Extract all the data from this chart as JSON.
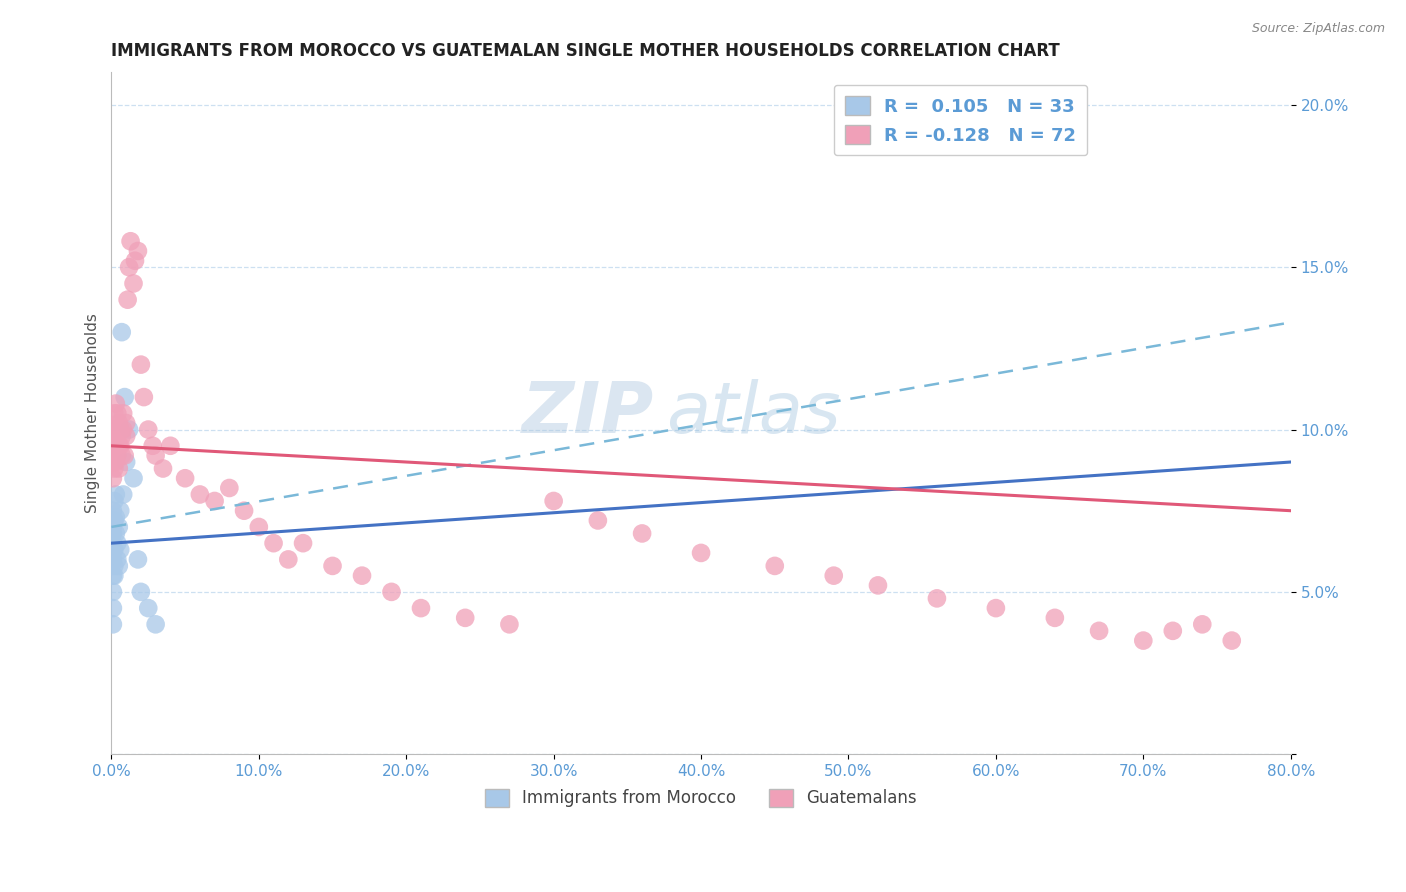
{
  "title": "IMMIGRANTS FROM MOROCCO VS GUATEMALAN SINGLE MOTHER HOUSEHOLDS CORRELATION CHART",
  "source": "Source: ZipAtlas.com",
  "ylabel": "Single Mother Households",
  "xlim": [
    0.0,
    0.8
  ],
  "ylim": [
    0.0,
    0.21
  ],
  "xticks": [
    0.0,
    0.1,
    0.2,
    0.3,
    0.4,
    0.5,
    0.6,
    0.7,
    0.8
  ],
  "yticks": [
    0.0,
    0.05,
    0.1,
    0.15,
    0.2
  ],
  "ytick_labels": [
    "",
    "5.0%",
    "10.0%",
    "15.0%",
    "20.0%"
  ],
  "xtick_labels": [
    "0.0%",
    "10.0%",
    "20.0%",
    "30.0%",
    "40.0%",
    "50.0%",
    "60.0%",
    "70.0%",
    "80.0%"
  ],
  "blue_scatter_color": "#a8c8e8",
  "pink_scatter_color": "#f0a0b8",
  "blue_line_color": "#4472c4",
  "pink_line_color": "#e05878",
  "dashed_line_color": "#7ab8d8",
  "tick_color": "#5b9bd5",
  "legend_R1": "R =  0.105",
  "legend_N1": "N = 33",
  "legend_R2": "R = -0.128",
  "legend_N2": "N = 72",
  "legend_label1": "Immigrants from Morocco",
  "legend_label2": "Guatemalans",
  "watermark_zip": "ZIP",
  "watermark_atlas": "atlas",
  "blue_line_x0": 0.0,
  "blue_line_x1": 0.8,
  "blue_line_y0": 0.065,
  "blue_line_y1": 0.09,
  "pink_line_x0": 0.0,
  "pink_line_x1": 0.8,
  "pink_line_y0": 0.095,
  "pink_line_y1": 0.075,
  "dashed_line_x0": 0.0,
  "dashed_line_x1": 0.8,
  "dashed_line_y0": 0.07,
  "dashed_line_y1": 0.133,
  "blue_x": [
    0.001,
    0.001,
    0.001,
    0.001,
    0.001,
    0.001,
    0.001,
    0.001,
    0.001,
    0.002,
    0.002,
    0.002,
    0.002,
    0.002,
    0.003,
    0.003,
    0.003,
    0.004,
    0.004,
    0.005,
    0.005,
    0.006,
    0.006,
    0.007,
    0.008,
    0.009,
    0.01,
    0.012,
    0.015,
    0.018,
    0.02,
    0.025,
    0.03
  ],
  "blue_y": [
    0.06,
    0.055,
    0.065,
    0.07,
    0.075,
    0.05,
    0.045,
    0.04,
    0.068,
    0.072,
    0.078,
    0.058,
    0.063,
    0.055,
    0.068,
    0.073,
    0.08,
    0.065,
    0.06,
    0.07,
    0.058,
    0.075,
    0.063,
    0.13,
    0.08,
    0.11,
    0.09,
    0.1,
    0.085,
    0.06,
    0.05,
    0.045,
    0.04
  ],
  "pink_x": [
    0.001,
    0.001,
    0.001,
    0.001,
    0.002,
    0.002,
    0.002,
    0.002,
    0.002,
    0.003,
    0.003,
    0.003,
    0.003,
    0.004,
    0.004,
    0.004,
    0.005,
    0.005,
    0.005,
    0.005,
    0.006,
    0.006,
    0.007,
    0.007,
    0.008,
    0.008,
    0.009,
    0.01,
    0.01,
    0.011,
    0.012,
    0.013,
    0.015,
    0.016,
    0.018,
    0.02,
    0.022,
    0.025,
    0.028,
    0.03,
    0.035,
    0.04,
    0.05,
    0.06,
    0.07,
    0.08,
    0.09,
    0.1,
    0.11,
    0.12,
    0.13,
    0.15,
    0.17,
    0.19,
    0.21,
    0.24,
    0.27,
    0.3,
    0.33,
    0.36,
    0.4,
    0.45,
    0.49,
    0.52,
    0.56,
    0.6,
    0.64,
    0.67,
    0.7,
    0.72,
    0.74,
    0.76
  ],
  "pink_y": [
    0.09,
    0.095,
    0.1,
    0.085,
    0.098,
    0.105,
    0.092,
    0.088,
    0.095,
    0.1,
    0.108,
    0.095,
    0.09,
    0.098,
    0.105,
    0.092,
    0.1,
    0.095,
    0.088,
    0.102,
    0.095,
    0.1,
    0.092,
    0.098,
    0.1,
    0.105,
    0.092,
    0.098,
    0.102,
    0.14,
    0.15,
    0.158,
    0.145,
    0.152,
    0.155,
    0.12,
    0.11,
    0.1,
    0.095,
    0.092,
    0.088,
    0.095,
    0.085,
    0.08,
    0.078,
    0.082,
    0.075,
    0.07,
    0.065,
    0.06,
    0.065,
    0.058,
    0.055,
    0.05,
    0.045,
    0.042,
    0.04,
    0.078,
    0.072,
    0.068,
    0.062,
    0.058,
    0.055,
    0.052,
    0.048,
    0.045,
    0.042,
    0.038,
    0.035,
    0.038,
    0.04,
    0.035
  ]
}
